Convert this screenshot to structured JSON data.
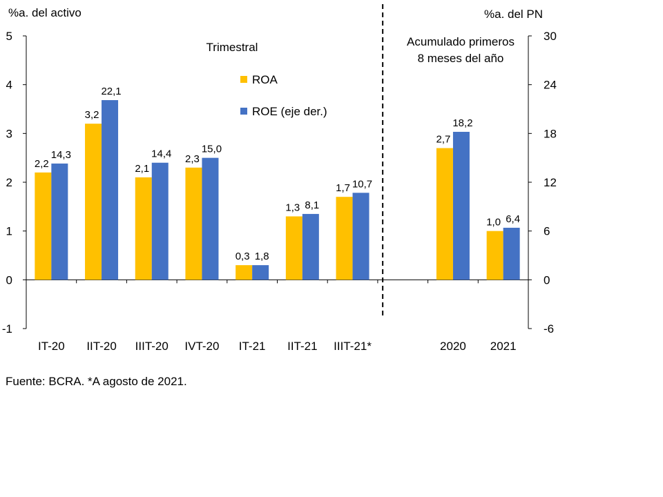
{
  "chart_data": {
    "type": "bar",
    "categories": [
      "IT-20",
      "IIT-20",
      "IIIT-20",
      "IVT-20",
      "IT-21",
      "IIT-21",
      "IIIT-21*",
      "",
      "2020",
      "2021"
    ],
    "series": [
      {
        "name": "ROA",
        "axis": "left",
        "values": [
          2.2,
          3.2,
          2.1,
          2.3,
          0.3,
          1.3,
          1.7,
          null,
          2.7,
          1.0
        ],
        "labels": [
          "2,2",
          "3,2",
          "2,1",
          "2,3",
          "0,3",
          "1,3",
          "1,7",
          "",
          "2,7",
          "1,0"
        ],
        "color": "#FFC000"
      },
      {
        "name": "ROE (eje der.)",
        "axis": "right",
        "values": [
          14.3,
          22.1,
          14.4,
          15.0,
          1.8,
          8.1,
          10.7,
          null,
          18.2,
          6.4
        ],
        "labels": [
          "14,3",
          "22,1",
          "14,4",
          "15,0",
          "1,8",
          "8,1",
          "10,7",
          "",
          "18,2",
          "6,4"
        ],
        "color": "#4472C4"
      }
    ],
    "y_left": {
      "label": "%a. del activo",
      "lim": [
        -1,
        5
      ],
      "ticks": [
        "-1",
        "0",
        "1",
        "2",
        "3",
        "4",
        "5"
      ]
    },
    "y_right": {
      "label": "%a. del PN",
      "lim": [
        -6,
        30
      ],
      "ticks": [
        "-6",
        "0",
        "6",
        "12",
        "18",
        "24",
        "30"
      ]
    },
    "annotations": {
      "quarterly": "Trimestral",
      "cumulative_line1": "Acumulado primeros",
      "cumulative_line2": "8 meses del año"
    },
    "legend_position": "top-center",
    "grid": false,
    "separator": "dashed vertical line between IIIT-21* and 2020"
  },
  "source_note": "Fuente: BCRA. *A agosto de 2021."
}
